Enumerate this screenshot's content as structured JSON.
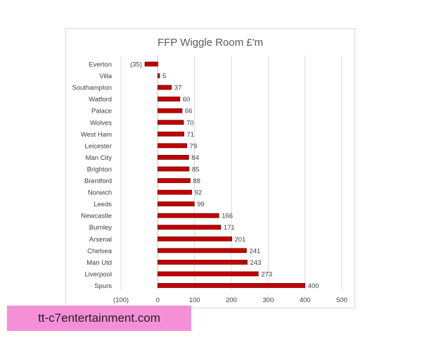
{
  "chart_data": {
    "type": "bar",
    "orientation": "horizontal",
    "title": "FFP Wiggle Room £'m",
    "categories": [
      "Everton",
      "Villa",
      "Southampton",
      "Watford",
      "Palace",
      "Wolves",
      "West Ham",
      "Leicester",
      "Man City",
      "Brighton",
      "Brentford",
      "Norwich",
      "Leeds",
      "Newcastle",
      "Burnley",
      "Arsenal",
      "Chelsea",
      "Man Utd",
      "Liverpool",
      "Spurs"
    ],
    "values": [
      -35,
      5,
      37,
      60,
      66,
      70,
      71,
      79,
      84,
      85,
      88,
      92,
      99,
      166,
      171,
      201,
      241,
      243,
      273,
      400
    ],
    "data_labels": [
      "(35)",
      "5",
      "37",
      "60",
      "66",
      "70",
      "71",
      "79",
      "84",
      "85",
      "88",
      "92",
      "99",
      "166",
      "171",
      "201",
      "241",
      "243",
      "273",
      "400"
    ],
    "xlim": [
      -100,
      500
    ],
    "xticks": [
      -100,
      0,
      100,
      200,
      300,
      400,
      500
    ],
    "xtick_labels": [
      "(100)",
      "0",
      "100",
      "200",
      "300",
      "400",
      "500"
    ],
    "xlabel": "",
    "ylabel": "",
    "grid": "vertical",
    "legend": "none",
    "bar_color": "#c00000",
    "bar_edge_color": "#7a0000"
  },
  "watermark": {
    "text": "tt-c7entertainment.com",
    "color": "#f590d8"
  }
}
